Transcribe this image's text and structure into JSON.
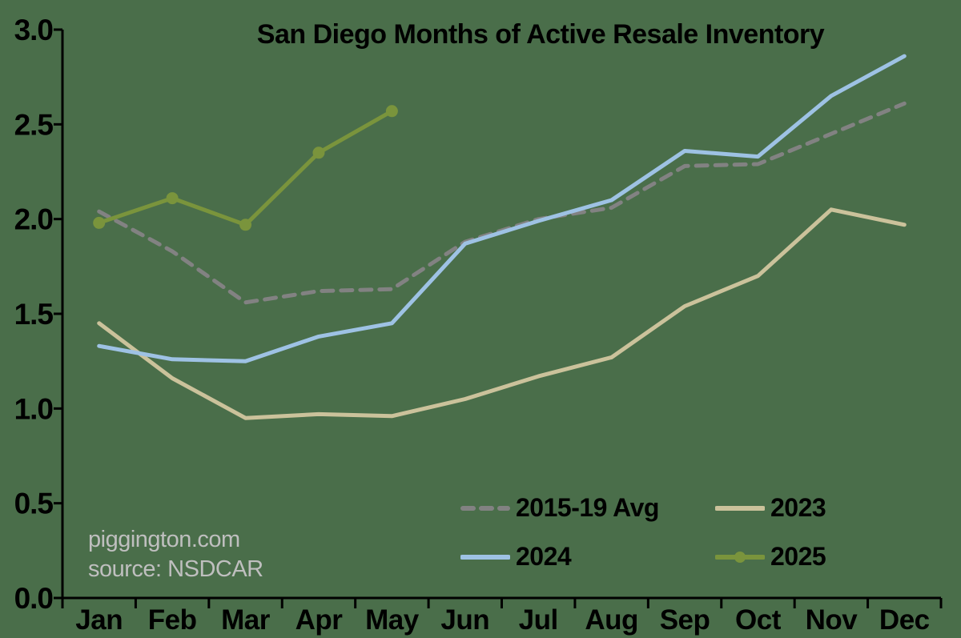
{
  "watermark": {
    "line1": "piggington.com",
    "line2": "source: NSDCAR"
  },
  "colors": {
    "background": "#4a6e4a",
    "axis": "#000000",
    "text": "#000000",
    "watermark": "#bfbfbf"
  },
  "chart_data": {
    "type": "line",
    "title": "San Diego Months of Active Resale Inventory",
    "xlabel": "",
    "ylabel": "",
    "categories": [
      "Jan",
      "Feb",
      "Mar",
      "Apr",
      "May",
      "Jun",
      "Jul",
      "Aug",
      "Sep",
      "Oct",
      "Nov",
      "Dec"
    ],
    "ylim": [
      0.0,
      3.0
    ],
    "ytick_step": 0.5,
    "ytick_labels": [
      "0.0",
      "0.5",
      "1.0",
      "1.5",
      "2.0",
      "2.5",
      "3.0"
    ],
    "grid": false,
    "legend_position": "lower-center",
    "series": [
      {
        "name": "2015-19 Avg",
        "color": "#828282",
        "style": "dashed",
        "marker": false,
        "values": [
          2.04,
          1.83,
          1.56,
          1.62,
          1.63,
          1.88,
          2.0,
          2.06,
          2.28,
          2.29,
          2.45,
          2.61
        ]
      },
      {
        "name": "2023",
        "color": "#cbc29b",
        "style": "solid",
        "marker": false,
        "values": [
          1.45,
          1.16,
          0.95,
          0.97,
          0.96,
          1.05,
          1.17,
          1.27,
          1.54,
          1.7,
          2.05,
          1.97
        ]
      },
      {
        "name": "2024",
        "color": "#9ec2e4",
        "style": "solid",
        "marker": false,
        "values": [
          1.33,
          1.26,
          1.25,
          1.38,
          1.45,
          1.87,
          1.99,
          2.1,
          2.36,
          2.33,
          2.65,
          2.86
        ]
      },
      {
        "name": "2025",
        "color": "#7a943c",
        "style": "solid",
        "marker": true,
        "values": [
          1.98,
          2.11,
          1.97,
          2.35,
          2.57
        ]
      }
    ]
  }
}
